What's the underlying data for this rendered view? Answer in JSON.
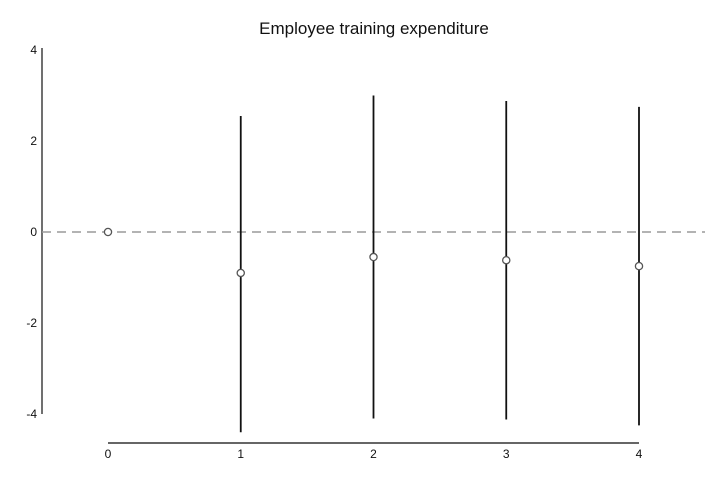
{
  "chart_data": {
    "type": "scatter",
    "title": "Employee training expenditure",
    "xlabel": "",
    "ylabel": "",
    "x_ticks": [
      "0",
      "1",
      "2",
      "3",
      "4"
    ],
    "y_ticks": [
      "4",
      "2",
      "0",
      "-2",
      "-4"
    ],
    "xlim": [
      0,
      4
    ],
    "ylim": [
      -4,
      4
    ],
    "reference_line": {
      "y": 0,
      "style": "dashed",
      "color": "#9a9a9a"
    },
    "grid": false,
    "legend": "none",
    "points": [
      {
        "x": 0,
        "y": 0.0,
        "lower": 0.0,
        "upper": 0.0
      },
      {
        "x": 1,
        "y": -0.9,
        "lower": -4.4,
        "upper": 2.55
      },
      {
        "x": 2,
        "y": -0.55,
        "lower": -4.1,
        "upper": 3.0
      },
      {
        "x": 3,
        "y": -0.62,
        "lower": -4.12,
        "upper": 2.88
      },
      {
        "x": 4,
        "y": -0.75,
        "lower": -4.25,
        "upper": 2.75
      }
    ],
    "colors": {
      "point_stroke": "#555555",
      "interval": "#111111",
      "axis": "#333333"
    }
  }
}
